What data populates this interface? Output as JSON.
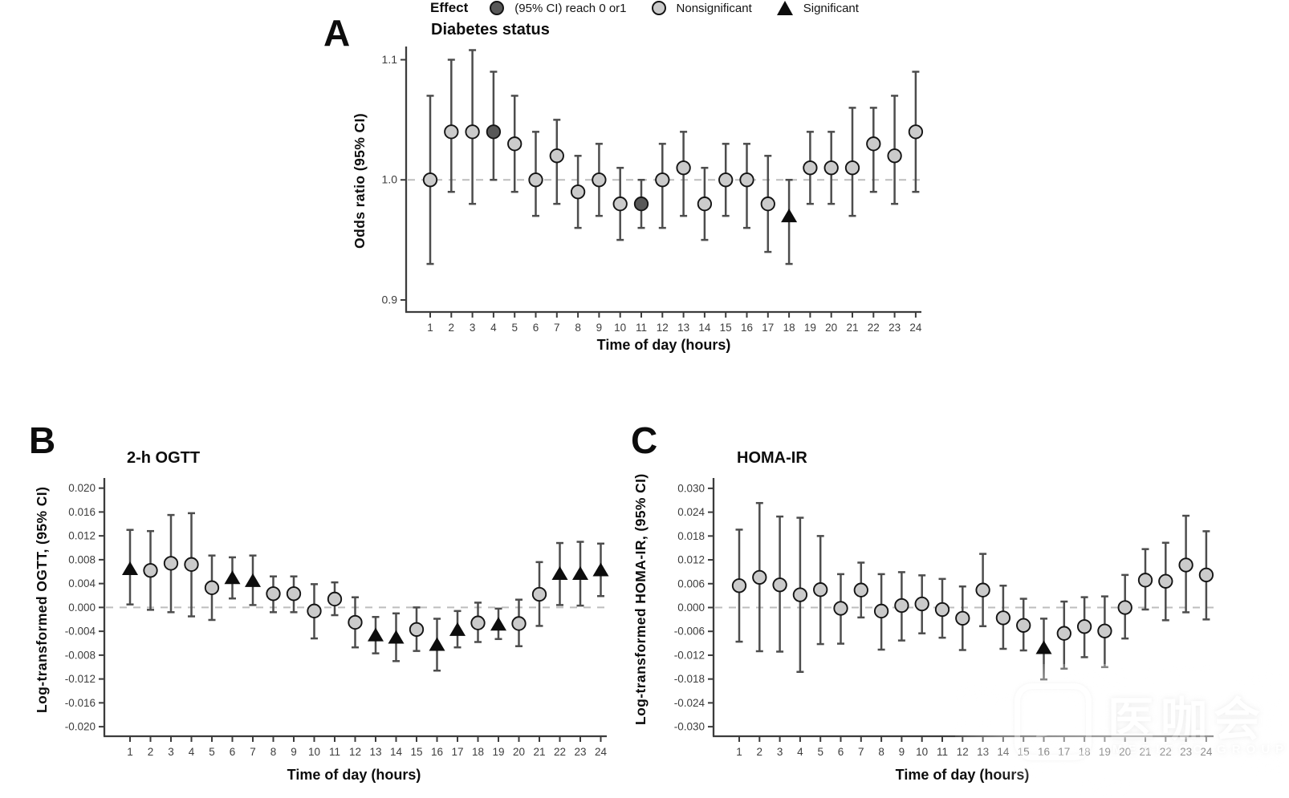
{
  "colors": {
    "nonsig_fill": "#cbcbcb",
    "reach_fill": "#585858",
    "sig_fill": "#0d0d0d",
    "marker_stroke": "#141414",
    "whisker": "#4d4d4d",
    "axis": "#3c3c3c",
    "refline": "#bdbdbd",
    "tick_text": "#3d3d3d"
  },
  "legend": {
    "title": "Effect",
    "items": [
      {
        "marker": "dark-circle",
        "label": "(95% CI) reach 0 or1"
      },
      {
        "marker": "light-circle",
        "label": "Nonsignificant"
      },
      {
        "marker": "black-triangle",
        "label": "Significant"
      }
    ]
  },
  "watermark": {
    "logo_text": "医咖会",
    "subtext": "MEDIECO GROUP"
  },
  "chart_data": [
    {
      "panel_label": "A",
      "type": "scatter",
      "title": "Diabetes status",
      "xlabel": "Time of day (hours)",
      "ylabel": "Odds ratio  (95% CI)",
      "refline": 1.0,
      "ylim": [
        0.89,
        1.111
      ],
      "yticks": [
        {
          "v": 1.1,
          "label": "1.1"
        },
        {
          "v": 1.0,
          "label": "1.0"
        },
        {
          "v": 0.9,
          "label": "0.9"
        }
      ],
      "points": [
        {
          "x": 1,
          "y": 1.0,
          "lo": 0.93,
          "hi": 1.07,
          "effect": "nonsig"
        },
        {
          "x": 2,
          "y": 1.04,
          "lo": 0.99,
          "hi": 1.1,
          "effect": "nonsig"
        },
        {
          "x": 3,
          "y": 1.04,
          "lo": 0.98,
          "hi": 1.108,
          "effect": "nonsig"
        },
        {
          "x": 4,
          "y": 1.04,
          "lo": 1.0,
          "hi": 1.09,
          "effect": "reach"
        },
        {
          "x": 5,
          "y": 1.03,
          "lo": 0.99,
          "hi": 1.07,
          "effect": "nonsig"
        },
        {
          "x": 6,
          "y": 1.0,
          "lo": 0.97,
          "hi": 1.04,
          "effect": "nonsig"
        },
        {
          "x": 7,
          "y": 1.02,
          "lo": 0.98,
          "hi": 1.05,
          "effect": "nonsig"
        },
        {
          "x": 8,
          "y": 0.99,
          "lo": 0.96,
          "hi": 1.02,
          "effect": "nonsig"
        },
        {
          "x": 9,
          "y": 1.0,
          "lo": 0.97,
          "hi": 1.03,
          "effect": "nonsig"
        },
        {
          "x": 10,
          "y": 0.98,
          "lo": 0.95,
          "hi": 1.01,
          "effect": "nonsig"
        },
        {
          "x": 11,
          "y": 0.98,
          "lo": 0.96,
          "hi": 1.0,
          "effect": "reach"
        },
        {
          "x": 12,
          "y": 1.0,
          "lo": 0.96,
          "hi": 1.03,
          "effect": "nonsig"
        },
        {
          "x": 13,
          "y": 1.01,
          "lo": 0.97,
          "hi": 1.04,
          "effect": "nonsig"
        },
        {
          "x": 14,
          "y": 0.98,
          "lo": 0.95,
          "hi": 1.01,
          "effect": "nonsig"
        },
        {
          "x": 15,
          "y": 1.0,
          "lo": 0.97,
          "hi": 1.03,
          "effect": "nonsig"
        },
        {
          "x": 16,
          "y": 1.0,
          "lo": 0.96,
          "hi": 1.03,
          "effect": "nonsig"
        },
        {
          "x": 17,
          "y": 0.98,
          "lo": 0.94,
          "hi": 1.02,
          "effect": "nonsig"
        },
        {
          "x": 18,
          "y": 0.97,
          "lo": 0.93,
          "hi": 1.0,
          "effect": "sig"
        },
        {
          "x": 19,
          "y": 1.01,
          "lo": 0.98,
          "hi": 1.04,
          "effect": "nonsig"
        },
        {
          "x": 20,
          "y": 1.01,
          "lo": 0.98,
          "hi": 1.04,
          "effect": "nonsig"
        },
        {
          "x": 21,
          "y": 1.01,
          "lo": 0.97,
          "hi": 1.06,
          "effect": "nonsig"
        },
        {
          "x": 22,
          "y": 1.03,
          "lo": 0.99,
          "hi": 1.06,
          "effect": "nonsig"
        },
        {
          "x": 23,
          "y": 1.02,
          "lo": 0.98,
          "hi": 1.07,
          "effect": "nonsig"
        },
        {
          "x": 24,
          "y": 1.04,
          "lo": 0.99,
          "hi": 1.09,
          "effect": "nonsig"
        }
      ]
    },
    {
      "panel_label": "B",
      "type": "scatter",
      "title": "2-h OGTT",
      "xlabel": "Time of day (hours)",
      "ylabel": "Log-transformed OGTT, (95% CI)",
      "refline": 0.0,
      "ylim": [
        -0.0216,
        0.0217
      ],
      "yticks": [
        {
          "v": 0.02,
          "label": "0.020"
        },
        {
          "v": 0.016,
          "label": "0.016"
        },
        {
          "v": 0.012,
          "label": "0.012"
        },
        {
          "v": 0.008,
          "label": "0.008"
        },
        {
          "v": 0.004,
          "label": "0.004"
        },
        {
          "v": 0.0,
          "label": "0.000"
        },
        {
          "v": -0.004,
          "label": "-0.004"
        },
        {
          "v": -0.008,
          "label": "-0.008"
        },
        {
          "v": -0.012,
          "label": "-0.012"
        },
        {
          "v": -0.016,
          "label": "-0.016"
        },
        {
          "v": -0.02,
          "label": "-0.020"
        }
      ],
      "points": [
        {
          "x": 1,
          "y": 0.0065,
          "lo": 0.0005,
          "hi": 0.013,
          "effect": "sig"
        },
        {
          "x": 2,
          "y": 0.0062,
          "lo": -0.0004,
          "hi": 0.0128,
          "effect": "nonsig"
        },
        {
          "x": 3,
          "y": 0.0074,
          "lo": -0.0008,
          "hi": 0.0155,
          "effect": "nonsig"
        },
        {
          "x": 4,
          "y": 0.0072,
          "lo": -0.0015,
          "hi": 0.0158,
          "effect": "nonsig"
        },
        {
          "x": 5,
          "y": 0.0033,
          "lo": -0.0021,
          "hi": 0.0087,
          "effect": "nonsig"
        },
        {
          "x": 6,
          "y": 0.005,
          "lo": 0.0015,
          "hi": 0.0084,
          "effect": "sig"
        },
        {
          "x": 7,
          "y": 0.0045,
          "lo": 0.0004,
          "hi": 0.0087,
          "effect": "sig"
        },
        {
          "x": 8,
          "y": 0.0023,
          "lo": -0.0008,
          "hi": 0.0052,
          "effect": "nonsig"
        },
        {
          "x": 9,
          "y": 0.0023,
          "lo": -0.0008,
          "hi": 0.0052,
          "effect": "nonsig"
        },
        {
          "x": 10,
          "y": -0.0006,
          "lo": -0.0052,
          "hi": 0.0039,
          "effect": "nonsig"
        },
        {
          "x": 11,
          "y": 0.0014,
          "lo": -0.0013,
          "hi": 0.0042,
          "effect": "nonsig"
        },
        {
          "x": 12,
          "y": -0.0025,
          "lo": -0.0067,
          "hi": 0.0017,
          "effect": "nonsig"
        },
        {
          "x": 13,
          "y": -0.0046,
          "lo": -0.0077,
          "hi": -0.0016,
          "effect": "sig"
        },
        {
          "x": 14,
          "y": -0.005,
          "lo": -0.009,
          "hi": -0.001,
          "effect": "sig"
        },
        {
          "x": 15,
          "y": -0.0037,
          "lo": -0.0073,
          "hi": 0.0,
          "effect": "nonsig"
        },
        {
          "x": 16,
          "y": -0.0062,
          "lo": -0.0106,
          "hi": -0.0019,
          "effect": "sig"
        },
        {
          "x": 17,
          "y": -0.0037,
          "lo": -0.0067,
          "hi": -0.0006,
          "effect": "sig"
        },
        {
          "x": 18,
          "y": -0.0026,
          "lo": -0.0058,
          "hi": 0.0008,
          "effect": "nonsig"
        },
        {
          "x": 19,
          "y": -0.0028,
          "lo": -0.0053,
          "hi": -0.0002,
          "effect": "sig"
        },
        {
          "x": 20,
          "y": -0.0027,
          "lo": -0.0065,
          "hi": 0.0013,
          "effect": "nonsig"
        },
        {
          "x": 21,
          "y": 0.0022,
          "lo": -0.0031,
          "hi": 0.0076,
          "effect": "nonsig"
        },
        {
          "x": 22,
          "y": 0.0057,
          "lo": 0.0004,
          "hi": 0.0108,
          "effect": "sig"
        },
        {
          "x": 23,
          "y": 0.0057,
          "lo": 0.0003,
          "hi": 0.011,
          "effect": "sig"
        },
        {
          "x": 24,
          "y": 0.0063,
          "lo": 0.0019,
          "hi": 0.0107,
          "effect": "sig"
        }
      ]
    },
    {
      "panel_label": "C",
      "type": "scatter",
      "title": "HOMA-IR",
      "xlabel": "Time of day (hours)",
      "ylabel": "Log-transformed HOMA-IR, (95% CI)",
      "refline": 0.0,
      "ylim": [
        -0.0324,
        0.0326
      ],
      "yticks": [
        {
          "v": 0.03,
          "label": "0.030"
        },
        {
          "v": 0.024,
          "label": "0.024"
        },
        {
          "v": 0.018,
          "label": "0.018"
        },
        {
          "v": 0.012,
          "label": "0.012"
        },
        {
          "v": 0.006,
          "label": "0.006"
        },
        {
          "v": 0.0,
          "label": "0.000"
        },
        {
          "v": -0.006,
          "label": "-0.006"
        },
        {
          "v": -0.012,
          "label": "-0.012"
        },
        {
          "v": -0.018,
          "label": "-0.018"
        },
        {
          "v": -0.024,
          "label": "-0.024"
        },
        {
          "v": -0.03,
          "label": "-0.030"
        }
      ],
      "points": [
        {
          "x": 1,
          "y": 0.0055,
          "lo": -0.0086,
          "hi": 0.0196,
          "effect": "nonsig"
        },
        {
          "x": 2,
          "y": 0.0076,
          "lo": -0.011,
          "hi": 0.0263,
          "effect": "nonsig"
        },
        {
          "x": 3,
          "y": 0.0057,
          "lo": -0.0111,
          "hi": 0.0229,
          "effect": "nonsig"
        },
        {
          "x": 4,
          "y": 0.0032,
          "lo": -0.0162,
          "hi": 0.0226,
          "effect": "nonsig"
        },
        {
          "x": 5,
          "y": 0.0045,
          "lo": -0.0092,
          "hi": 0.018,
          "effect": "nonsig"
        },
        {
          "x": 6,
          "y": -0.0002,
          "lo": -0.0091,
          "hi": 0.0084,
          "effect": "nonsig"
        },
        {
          "x": 7,
          "y": 0.0044,
          "lo": -0.0025,
          "hi": 0.0113,
          "effect": "nonsig"
        },
        {
          "x": 8,
          "y": -0.0009,
          "lo": -0.0106,
          "hi": 0.0084,
          "effect": "nonsig"
        },
        {
          "x": 9,
          "y": 0.0005,
          "lo": -0.0083,
          "hi": 0.0089,
          "effect": "nonsig"
        },
        {
          "x": 10,
          "y": 0.0009,
          "lo": -0.0065,
          "hi": 0.0081,
          "effect": "nonsig"
        },
        {
          "x": 11,
          "y": -0.0005,
          "lo": -0.0076,
          "hi": 0.0072,
          "effect": "nonsig"
        },
        {
          "x": 12,
          "y": -0.0027,
          "lo": -0.0107,
          "hi": 0.0053,
          "effect": "nonsig"
        },
        {
          "x": 13,
          "y": 0.0044,
          "lo": -0.0047,
          "hi": 0.0135,
          "effect": "nonsig"
        },
        {
          "x": 14,
          "y": -0.0026,
          "lo": -0.0104,
          "hi": 0.0055,
          "effect": "nonsig"
        },
        {
          "x": 15,
          "y": -0.0045,
          "lo": -0.0108,
          "hi": 0.0022,
          "effect": "nonsig"
        },
        {
          "x": 16,
          "y": -0.0101,
          "lo": -0.0181,
          "hi": -0.0028,
          "effect": "sig"
        },
        {
          "x": 17,
          "y": -0.0065,
          "lo": -0.0154,
          "hi": 0.0015,
          "effect": "nonsig"
        },
        {
          "x": 18,
          "y": -0.0048,
          "lo": -0.0125,
          "hi": 0.0026,
          "effect": "nonsig"
        },
        {
          "x": 19,
          "y": -0.0059,
          "lo": -0.015,
          "hi": 0.0028,
          "effect": "nonsig"
        },
        {
          "x": 20,
          "y": 0.0,
          "lo": -0.0078,
          "hi": 0.0082,
          "effect": "nonsig"
        },
        {
          "x": 21,
          "y": 0.0069,
          "lo": -0.0005,
          "hi": 0.0147,
          "effect": "nonsig"
        },
        {
          "x": 22,
          "y": 0.0066,
          "lo": -0.0032,
          "hi": 0.0163,
          "effect": "nonsig"
        },
        {
          "x": 23,
          "y": 0.0107,
          "lo": -0.0012,
          "hi": 0.0231,
          "effect": "nonsig"
        },
        {
          "x": 24,
          "y": 0.0082,
          "lo": -0.003,
          "hi": 0.0192,
          "effect": "nonsig"
        }
      ]
    }
  ]
}
